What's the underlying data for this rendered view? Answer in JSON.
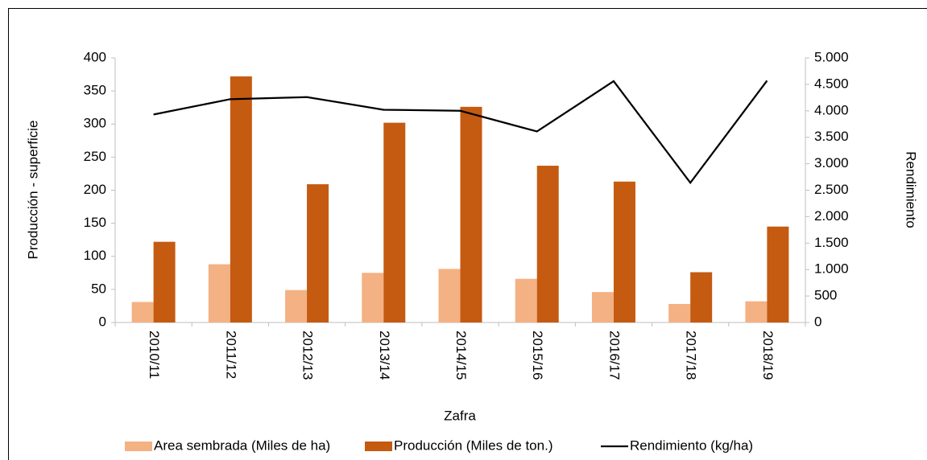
{
  "chart_data": {
    "type": "bar_line",
    "xlabel": "Zafra",
    "ylabel": "Producción - superficie",
    "y2label": "Rendimiento",
    "categories": [
      "2010/11",
      "2011/12",
      "2012/13",
      "2013/14",
      "2014/15",
      "2015/16",
      "2016/17",
      "2017/18",
      "2018/19"
    ],
    "series": [
      {
        "name": "Area sembrada (Miles de ha)",
        "color": "#f4b183",
        "type": "bar",
        "values": [
          31,
          88,
          49,
          75,
          81,
          66,
          46,
          28,
          32
        ]
      },
      {
        "name": "Producción (Miles de ton.)",
        "color": "#c55a11",
        "type": "bar",
        "values": [
          122,
          372,
          209,
          302,
          326,
          237,
          213,
          76,
          145
        ]
      },
      {
        "name": "Rendimiento (kg/ha)",
        "color": "#000000",
        "type": "line",
        "axis": "y2",
        "values": [
          3930,
          4220,
          4260,
          4020,
          4000,
          3610,
          4560,
          2640,
          4570
        ]
      }
    ],
    "ylim": [
      0,
      400
    ],
    "yticks": [
      0,
      50,
      100,
      150,
      200,
      250,
      300,
      350,
      400
    ],
    "y2lim": [
      0,
      5000
    ],
    "y2ticks": [
      0,
      {
        "value": 500,
        "label": "500"
      },
      {
        "value": 1000,
        "label": "1.000"
      },
      {
        "value": 1500,
        "label": "1.500"
      },
      {
        "value": 2000,
        "label": "2.000"
      },
      {
        "value": 2500,
        "label": "2.500"
      },
      {
        "value": 3000,
        "label": "3.000"
      },
      {
        "value": 3500,
        "label": "3.500"
      },
      {
        "value": 4000,
        "label": "4.000"
      },
      {
        "value": 4500,
        "label": "4.500"
      },
      {
        "value": 5000,
        "label": "5.000"
      }
    ],
    "legend": "bottom"
  }
}
